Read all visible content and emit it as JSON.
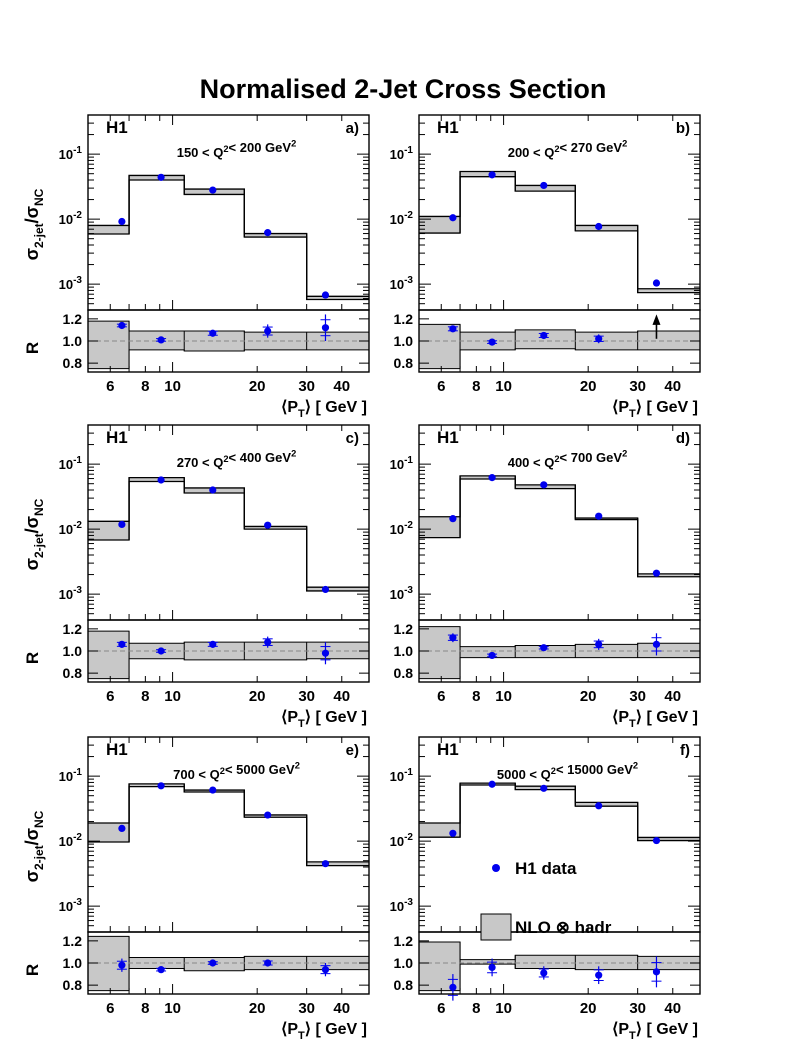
{
  "title": "Normalised 2-Jet Cross Section",
  "legend": {
    "data_label": "H1 data",
    "band_label": "NLO ⊗ hadr"
  },
  "colors": {
    "data": "#0000ee",
    "band": "#c8c8c8",
    "line": "#000000"
  },
  "chart_data": {
    "type": "step-with-points",
    "title": "Normalised 2-Jet Cross Section",
    "xlabel": "⟨P_T⟩ [ GeV ]",
    "ylabel_top": "σ_2-jet/σ_NC",
    "ylabel_bottom": "R",
    "x_scale": "log",
    "xlim": [
      5,
      50
    ],
    "x_ticks": [
      6,
      8,
      10,
      20,
      30,
      40
    ],
    "y_top_scale": "log",
    "y_top_lim": [
      0.0004,
      0.4
    ],
    "y_top_ticks": [
      {
        "value": 0.1,
        "base": "10",
        "exp": "-1"
      },
      {
        "value": 0.01,
        "base": "10",
        "exp": "-2"
      },
      {
        "value": 0.001,
        "base": "10",
        "exp": "-3"
      }
    ],
    "y_bottom_lim": [
      0.72,
      1.28
    ],
    "y_bottom_ticks": [
      "0.8",
      "1.0",
      "1.2"
    ],
    "bin_edges": [
      5,
      7,
      11,
      18,
      30,
      50
    ],
    "panels": [
      {
        "id": "a)",
        "experiment": "H1",
        "q2_range": "150 < Q²< 200 GeV²",
        "points_x": [
          6.6,
          9.1,
          13.9,
          21.8,
          35.0
        ],
        "data": [
          0.0092,
          0.044,
          0.028,
          0.0062,
          0.00068
        ],
        "nlo_low": [
          0.0059,
          0.04,
          0.024,
          0.0053,
          0.00058
        ],
        "nlo_high": [
          0.008,
          0.047,
          0.029,
          0.006,
          0.00065
        ],
        "ratio": [
          1.14,
          1.01,
          1.07,
          1.09,
          1.12
        ],
        "ratio_err": [
          0.02,
          0.02,
          0.03,
          0.06,
          0.12
        ],
        "ratio_band_low": [
          0.75,
          0.92,
          0.91,
          0.92,
          0.92
        ],
        "ratio_band_high": [
          1.18,
          1.09,
          1.09,
          1.08,
          1.08
        ],
        "ratio_arrow": [
          false,
          false,
          false,
          false,
          false
        ]
      },
      {
        "id": "b)",
        "experiment": "H1",
        "q2_range": "200 < Q²< 270 GeV²",
        "points_x": [
          6.6,
          9.1,
          13.9,
          21.8,
          35.0
        ],
        "data": [
          0.0105,
          0.048,
          0.033,
          0.0077,
          0.00104
        ],
        "nlo_low": [
          0.0061,
          0.045,
          0.027,
          0.0066,
          0.00074
        ],
        "nlo_high": [
          0.011,
          0.054,
          0.033,
          0.008,
          0.00085
        ],
        "ratio": [
          1.11,
          0.99,
          1.05,
          1.02,
          1.0
        ],
        "ratio_err": [
          0.03,
          0.02,
          0.03,
          0.04,
          0.0
        ],
        "ratio_band_low": [
          0.75,
          0.92,
          0.93,
          0.92,
          0.92
        ],
        "ratio_band_high": [
          1.15,
          1.08,
          1.1,
          1.08,
          1.09
        ],
        "ratio_arrow": [
          false,
          false,
          false,
          false,
          true
        ]
      },
      {
        "id": "c)",
        "experiment": "H1",
        "q2_range": "270 < Q²< 400 GeV²",
        "points_x": [
          6.6,
          9.1,
          13.9,
          21.8,
          35.0
        ],
        "data": [
          0.0118,
          0.057,
          0.04,
          0.0115,
          0.00118
        ],
        "nlo_low": [
          0.0068,
          0.054,
          0.036,
          0.01,
          0.00112
        ],
        "nlo_high": [
          0.0132,
          0.062,
          0.043,
          0.011,
          0.00128
        ],
        "ratio": [
          1.06,
          1.0,
          1.06,
          1.08,
          0.98
        ],
        "ratio_err": [
          0.03,
          0.02,
          0.03,
          0.05,
          0.1
        ],
        "ratio_band_low": [
          0.75,
          0.93,
          0.92,
          0.92,
          0.93
        ],
        "ratio_band_high": [
          1.18,
          1.07,
          1.08,
          1.08,
          1.08
        ],
        "ratio_arrow": [
          false,
          false,
          false,
          false,
          false
        ]
      },
      {
        "id": "d)",
        "experiment": "H1",
        "q2_range": "400 < Q²< 700 GeV²",
        "points_x": [
          6.6,
          9.1,
          13.9,
          21.8,
          35.0
        ],
        "data": [
          0.0145,
          0.062,
          0.048,
          0.0158,
          0.0021
        ],
        "nlo_low": [
          0.0074,
          0.059,
          0.042,
          0.014,
          0.00185
        ],
        "nlo_high": [
          0.0155,
          0.066,
          0.048,
          0.0148,
          0.00205
        ],
        "ratio": [
          1.12,
          0.96,
          1.03,
          1.06,
          1.06
        ],
        "ratio_err": [
          0.04,
          0.02,
          0.02,
          0.05,
          0.1
        ],
        "ratio_band_low": [
          0.75,
          0.94,
          0.94,
          0.94,
          0.94
        ],
        "ratio_band_high": [
          1.22,
          1.04,
          1.05,
          1.06,
          1.07
        ],
        "ratio_arrow": [
          false,
          false,
          false,
          false,
          false
        ]
      },
      {
        "id": "e)",
        "experiment": "H1",
        "q2_range": "700 < Q²< 5000 GeV²",
        "points_x": [
          6.6,
          9.1,
          13.9,
          21.8,
          35.0
        ],
        "data": [
          0.0157,
          0.071,
          0.061,
          0.0252,
          0.0045
        ],
        "nlo_low": [
          0.0097,
          0.069,
          0.057,
          0.0233,
          0.0042
        ],
        "nlo_high": [
          0.019,
          0.076,
          0.061,
          0.0253,
          0.0048
        ],
        "ratio": [
          0.98,
          0.94,
          1.0,
          1.0,
          0.94
        ],
        "ratio_err": [
          0.06,
          0.02,
          0.02,
          0.03,
          0.06
        ],
        "ratio_band_low": [
          0.75,
          0.95,
          0.93,
          0.94,
          0.94
        ],
        "ratio_band_high": [
          1.24,
          1.05,
          1.05,
          1.06,
          1.06
        ],
        "ratio_arrow": [
          false,
          false,
          false,
          false,
          false
        ]
      },
      {
        "id": "f)",
        "experiment": "H1",
        "q2_range": "5000 < Q²< 15000 GeV²",
        "points_x": [
          6.6,
          9.1,
          13.9,
          21.8,
          35.0
        ],
        "data": [
          0.0132,
          0.075,
          0.065,
          0.035,
          0.0102
        ],
        "nlo_low": [
          0.0115,
          0.073,
          0.062,
          0.0345,
          0.0102
        ],
        "nlo_high": [
          0.019,
          0.078,
          0.07,
          0.0395,
          0.0114
        ],
        "ratio": [
          0.78,
          0.96,
          0.91,
          0.89,
          0.92
        ],
        "ratio_err": [
          0.12,
          0.08,
          0.06,
          0.08,
          0.14
        ],
        "ratio_band_low": [
          0.75,
          0.99,
          0.95,
          0.94,
          0.94
        ],
        "ratio_band_high": [
          1.19,
          1.03,
          1.07,
          1.07,
          1.06
        ],
        "ratio_arrow": [
          false,
          false,
          false,
          false,
          false
        ]
      }
    ]
  }
}
